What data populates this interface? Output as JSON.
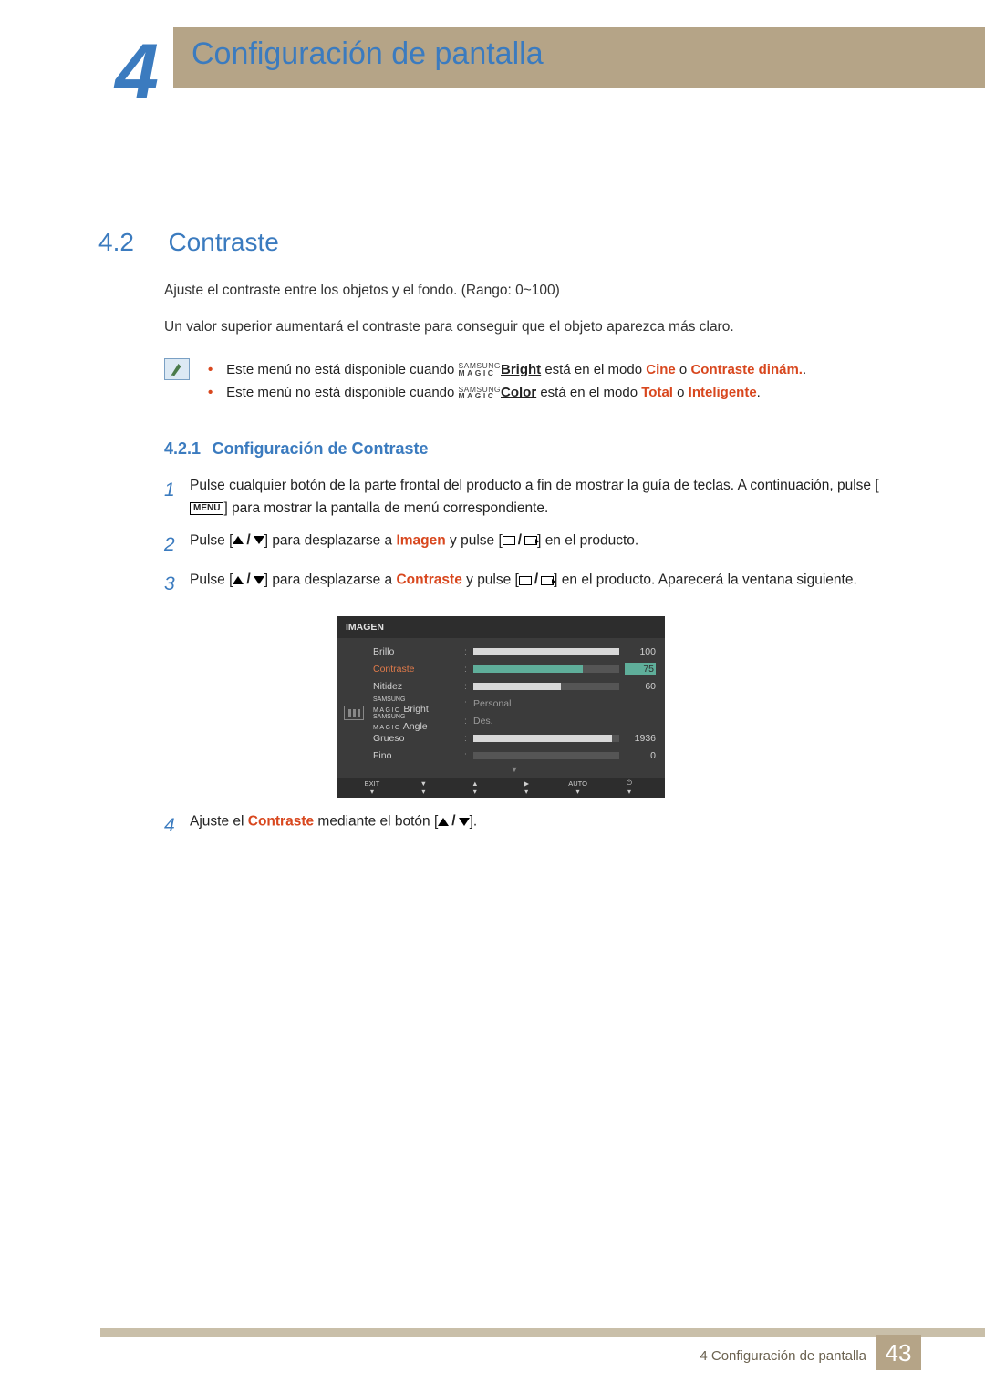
{
  "chapter": {
    "number": "4",
    "title": "Configuración de pantalla"
  },
  "section": {
    "number": "4.2",
    "title": "Contraste"
  },
  "intro_p1": "Ajuste el contraste entre los objetos y el fondo. (Rango: 0~100)",
  "intro_p2": "Un valor superior aumentará el contraste para conseguir que el objeto aparezca más claro.",
  "notes": {
    "n1_a": "Este menú no está disponible cuando ",
    "n1_b": " está en el modo ",
    "n1_mode1": "Cine",
    "n1_or": " o ",
    "n1_mode2": "Contraste dinám.",
    "n1_end": ".",
    "magic1": "Bright",
    "n2_a": "Este menú no está disponible cuando ",
    "n2_b": " está en el modo ",
    "n2_mode1": "Total",
    "n2_or": " o ",
    "n2_mode2": "Inteligente",
    "n2_end": ".",
    "magic2": "Color",
    "samsung": "SAMSUNG",
    "magic": "MAGIC"
  },
  "subsection": {
    "number": "4.2.1",
    "title": "Configuración de Contraste"
  },
  "steps": {
    "s1_a": "Pulse cualquier botón de la parte frontal del producto a fin de mostrar la guía de teclas. A continuación, pulse [",
    "s1_menu": "MENU",
    "s1_b": "] para mostrar la pantalla de menú correspondiente.",
    "s2_a": "Pulse [",
    "s2_b": "] para desplazarse a ",
    "s2_hl": "Imagen",
    "s2_c": " y pulse [",
    "s2_d": "] en el producto.",
    "s3_a": "Pulse [",
    "s3_b": "] para desplazarse a ",
    "s3_hl": "Contraste",
    "s3_c": " y pulse [",
    "s3_d": "] en el producto. Aparecerá la ventana siguiente.",
    "s4_a": "Ajuste el ",
    "s4_hl": "Contraste",
    "s4_b": " mediante el botón [",
    "s4_c": "]."
  },
  "osd": {
    "title": "IMAGEN",
    "rows": [
      {
        "label": "Brillo",
        "type": "bar",
        "value": "100",
        "fill": 100,
        "active": false
      },
      {
        "label": "Contraste",
        "type": "bar",
        "value": "75",
        "fill": 75,
        "active": true
      },
      {
        "label": "Nitidez",
        "type": "bar",
        "value": "60",
        "fill": 60,
        "active": false
      },
      {
        "label": "Bright",
        "type": "text",
        "value": "Personal",
        "magic": true
      },
      {
        "label": "Angle",
        "type": "text",
        "value": "Des.",
        "magic": true
      },
      {
        "label": "Grueso",
        "type": "bar",
        "value": "1936",
        "fill": 95,
        "active": false
      },
      {
        "label": "Fino",
        "type": "bar",
        "value": "0",
        "fill": 0,
        "active": false
      }
    ],
    "bottom": [
      "EXIT",
      "▼",
      "▲",
      "▶",
      "AUTO",
      "⏻"
    ],
    "colors": {
      "bg": "#3b3b3b",
      "title_bg": "#2d2d2d",
      "text": "#cfcfcf",
      "bar_bg": "#555555",
      "bar_fill": "#d8d8d8",
      "active": "#5fae9a",
      "active_label": "#e07a4a"
    }
  },
  "footer": {
    "text": "4 Configuración de pantalla",
    "page": "43"
  },
  "colors": {
    "accent_blue": "#3b7bbf",
    "accent_orange": "#d8471e",
    "band": "#b5a487",
    "band_light": "#c9bfa9"
  }
}
